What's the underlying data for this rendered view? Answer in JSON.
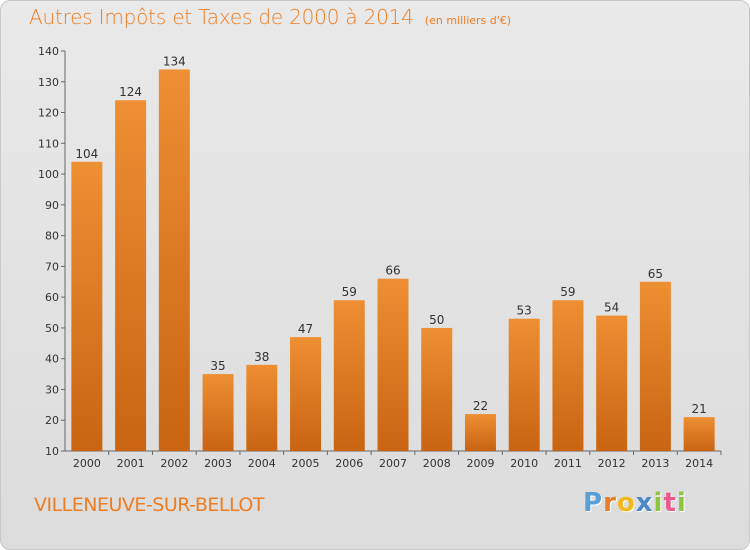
{
  "chart_data": {
    "type": "bar",
    "title": "Autres Impôts et Taxes de 2000 à 2014",
    "subtitle": "(en milliers d'€)",
    "xlabel": "",
    "ylabel": "",
    "categories": [
      "2000",
      "2001",
      "2002",
      "2003",
      "2004",
      "2005",
      "2006",
      "2007",
      "2008",
      "2009",
      "2010",
      "2011",
      "2012",
      "2013",
      "2014"
    ],
    "values": [
      104,
      124,
      134,
      35,
      38,
      47,
      59,
      66,
      50,
      22,
      53,
      59,
      54,
      65,
      21
    ],
    "ylim": [
      10,
      140
    ],
    "yticks": [
      10,
      20,
      30,
      40,
      50,
      60,
      70,
      80,
      90,
      100,
      110,
      120,
      130,
      140
    ],
    "grid": false,
    "bar_color": "#ee8f33",
    "bar_color_dark": "#c96412",
    "title_color": "#ee7d22"
  },
  "footer": {
    "commune": "VILLENEUVE-SUR-BELLOT",
    "brand_letters": [
      "P",
      "r",
      "o",
      "x",
      "i",
      "t",
      "i"
    ],
    "brand_colors": [
      "#5aa0d8",
      "#e87e2a",
      "#f2b81c",
      "#4a8ac8",
      "#8cc63f",
      "#e85a8c",
      "#8cc63f"
    ]
  }
}
